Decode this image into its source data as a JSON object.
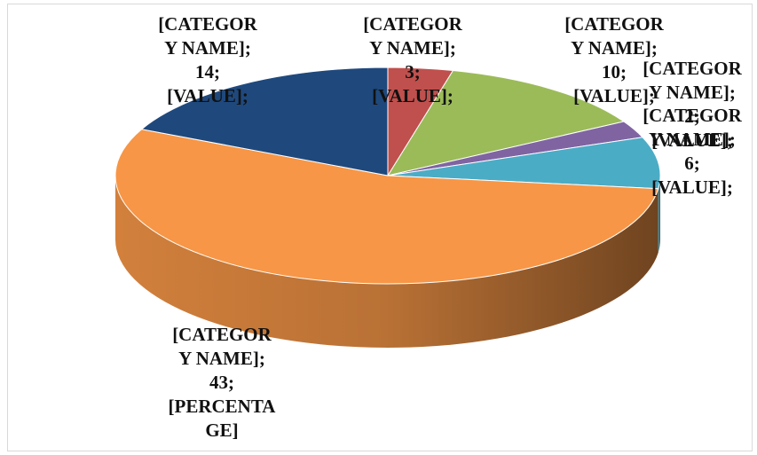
{
  "chart_data": {
    "type": "pie3d",
    "categories": [
      "[CATEGORY NAME]",
      "[CATEGORY NAME]",
      "[CATEGORY NAME]",
      "[CATEGORY NAME]",
      "[CATEGORY NAME]",
      "[CATEGORY NAME]"
    ],
    "values": [
      3,
      10,
      2,
      6,
      43,
      14
    ],
    "label_separator": ";",
    "label_suffixes": [
      "[VALUE];",
      "[VALUE];",
      "[VALUE];",
      "[VALUE];",
      "[PERCENTAGE]",
      "[VALUE];"
    ],
    "colors": [
      "#c0504d",
      "#9bbb59",
      "#8064a2",
      "#4bacc6",
      "#f79646",
      "#1f497d"
    ]
  }
}
